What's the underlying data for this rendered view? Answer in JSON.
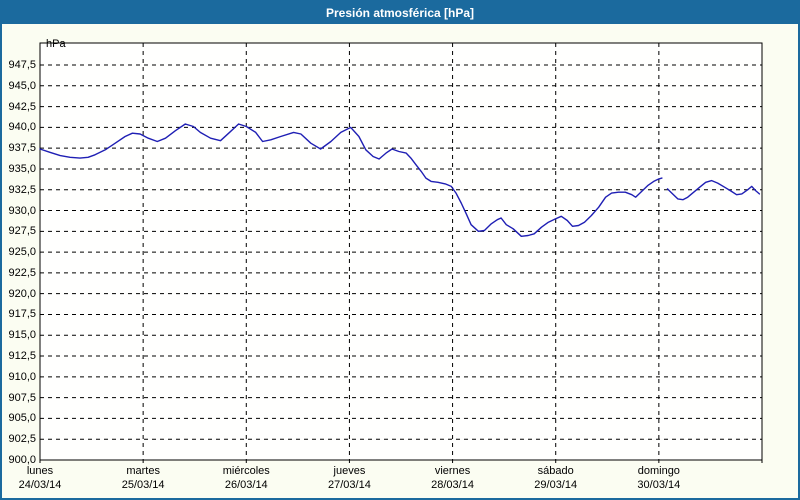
{
  "window": {
    "title": "Presión atmosférica [hPa]"
  },
  "colors": {
    "titlebar_bg": "#1b6a9e",
    "frame_border": "#1b6a9e",
    "title_text": "#ffffff",
    "page_bg": "#fbfdf2",
    "plot_bg": "#fffffe",
    "grid": "#000000",
    "series_line": "#1f1fb4"
  },
  "chart_data": {
    "type": "line",
    "title": "Presión atmosférica [hPa]",
    "y_axis": {
      "unit_label": "hPa",
      "tick_labels": [
        "947,5",
        "945,0",
        "942,5",
        "940,0",
        "937,5",
        "935,0",
        "932,5",
        "930,0",
        "927,5",
        "925,0",
        "922,5",
        "920,0",
        "917,5",
        "915,0",
        "912,5",
        "910,0",
        "907,5",
        "905,0",
        "902,5",
        "900,0"
      ],
      "tick_values": [
        947.5,
        945.0,
        942.5,
        940.0,
        937.5,
        935.0,
        932.5,
        930.0,
        927.5,
        925.0,
        922.5,
        920.0,
        917.5,
        915.0,
        912.5,
        910.0,
        907.5,
        905.0,
        902.5,
        900.0
      ],
      "ylim": [
        900.0,
        950.15
      ],
      "grid": "dashed"
    },
    "x_axis": {
      "days": [
        {
          "weekday": "lunes",
          "date": "24/03/14"
        },
        {
          "weekday": "martes",
          "date": "25/03/14"
        },
        {
          "weekday": "miércoles",
          "date": "26/03/14"
        },
        {
          "weekday": "jueves",
          "date": "27/03/14"
        },
        {
          "weekday": "viernes",
          "date": "28/03/14"
        },
        {
          "weekday": "sábado",
          "date": "29/03/14"
        },
        {
          "weekday": "domingo",
          "date": "30/03/14"
        }
      ],
      "hours_range": [
        0,
        168
      ],
      "grid": "dashed"
    },
    "legend": "none",
    "series": [
      {
        "name": "Presión atmosférica",
        "color": "#1f1fb4",
        "unit": "hPa",
        "segments": [
          [
            [
              0,
              937.4
            ],
            [
              2.3,
              937.0
            ],
            [
              4.7,
              936.6
            ],
            [
              7,
              936.4
            ],
            [
              9.3,
              936.3
            ],
            [
              11.2,
              936.4
            ],
            [
              12.8,
              936.7
            ],
            [
              15.2,
              937.3
            ],
            [
              17.5,
              938.1
            ],
            [
              19.8,
              938.9
            ],
            [
              21.5,
              939.3
            ],
            [
              23.3,
              939.2
            ],
            [
              25.2,
              938.7
            ],
            [
              27.3,
              938.3
            ],
            [
              29.2,
              938.7
            ],
            [
              31.5,
              939.6
            ],
            [
              33.8,
              940.4
            ],
            [
              35.7,
              940.1
            ],
            [
              37.3,
              939.4
            ],
            [
              39.7,
              938.7
            ],
            [
              42,
              938.4
            ],
            [
              43.9,
              939.3
            ],
            [
              46.2,
              940.4
            ],
            [
              48,
              940.1
            ],
            [
              50.2,
              939.4
            ],
            [
              51.8,
              938.3
            ],
            [
              53.7,
              938.5
            ],
            [
              56,
              938.9
            ],
            [
              59,
              939.4
            ],
            [
              60.7,
              939.2
            ],
            [
              63,
              938.1
            ],
            [
              65.3,
              937.4
            ],
            [
              67.7,
              938.3
            ],
            [
              70,
              939.4
            ],
            [
              72.3,
              940.0
            ],
            [
              74.2,
              938.9
            ],
            [
              75.8,
              937.3
            ],
            [
              77.5,
              936.5
            ],
            [
              78.9,
              936.2
            ],
            [
              80.5,
              936.9
            ],
            [
              81.9,
              937.4
            ],
            [
              83.5,
              937.1
            ],
            [
              85.2,
              936.9
            ],
            [
              86.3,
              936.3
            ],
            [
              87.5,
              935.5
            ],
            [
              88.7,
              934.7
            ],
            [
              89.8,
              933.9
            ],
            [
              91,
              933.5
            ],
            [
              92.6,
              933.4
            ],
            [
              94.3,
              933.2
            ],
            [
              95.7,
              932.9
            ],
            [
              96.8,
              932.1
            ],
            [
              98,
              930.9
            ],
            [
              99.2,
              929.6
            ],
            [
              100.3,
              928.3
            ],
            [
              102,
              927.5
            ],
            [
              103.4,
              927.6
            ],
            [
              105,
              928.4
            ],
            [
              106.4,
              928.9
            ],
            [
              107.3,
              929.1
            ],
            [
              108.5,
              928.3
            ],
            [
              110.1,
              927.8
            ],
            [
              112,
              926.9
            ],
            [
              113.6,
              927.0
            ],
            [
              115,
              927.2
            ],
            [
              116.7,
              928.0
            ],
            [
              118.3,
              928.6
            ],
            [
              120,
              929.0
            ],
            [
              121.3,
              929.3
            ],
            [
              122.7,
              928.8
            ],
            [
              123.9,
              928.1
            ],
            [
              125.3,
              928.2
            ],
            [
              126.7,
              928.6
            ],
            [
              128.3,
              929.4
            ],
            [
              130,
              930.4
            ],
            [
              131.6,
              931.6
            ],
            [
              133,
              932.1
            ],
            [
              134.6,
              932.2
            ],
            [
              136.2,
              932.2
            ],
            [
              137.7,
              931.9
            ],
            [
              138.6,
              931.6
            ],
            [
              140,
              932.3
            ],
            [
              141.4,
              933.0
            ],
            [
              142.8,
              933.5
            ],
            [
              144,
              933.8
            ],
            [
              144.7,
              933.9
            ]
          ],
          [
            [
              146,
              932.6
            ],
            [
              147,
              932.1
            ],
            [
              148.4,
              931.4
            ],
            [
              149.6,
              931.3
            ],
            [
              150.7,
              931.6
            ],
            [
              152.1,
              932.2
            ],
            [
              153.5,
              932.8
            ],
            [
              154.9,
              933.4
            ],
            [
              156.3,
              933.6
            ],
            [
              157.7,
              933.3
            ],
            [
              159.3,
              932.8
            ],
            [
              160.9,
              932.3
            ],
            [
              162.1,
              931.9
            ],
            [
              163.3,
              932.0
            ],
            [
              164.7,
              932.5
            ],
            [
              165.6,
              932.9
            ],
            [
              166.5,
              932.4
            ],
            [
              167.4,
              932.0
            ]
          ]
        ]
      }
    ]
  }
}
